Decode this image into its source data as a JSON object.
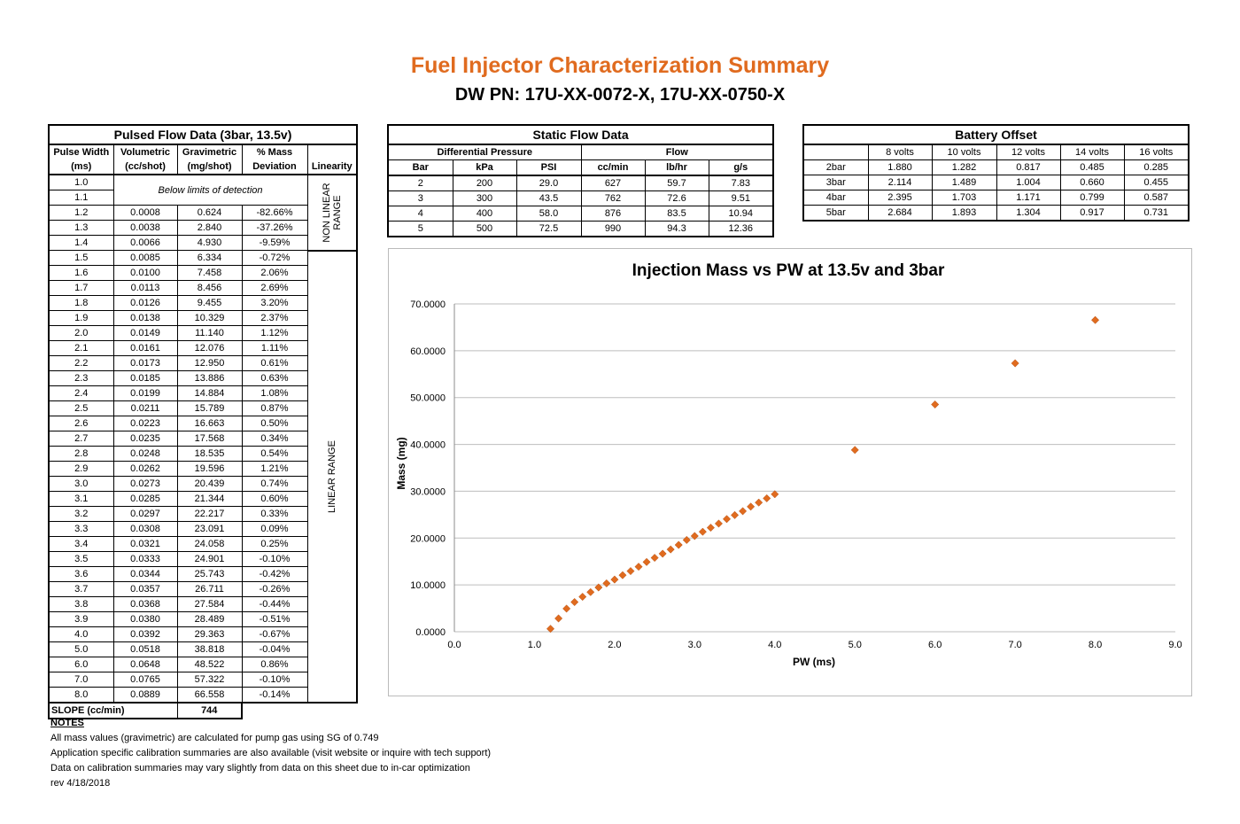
{
  "title": "Fuel Injector Characterization Summary",
  "subtitle": "DW PN: 17U-XX-0072-X, 17U-XX-0750-X",
  "pulsed": {
    "title": "Pulsed Flow Data (3bar, 13.5v)",
    "h_pw": [
      "Pulse Width",
      "(ms)"
    ],
    "h_vol": [
      "Volumetric",
      "(cc/shot)"
    ],
    "h_grav": [
      "Gravimetric",
      "(mg/shot)"
    ],
    "h_dev": [
      "% Mass",
      "Deviation"
    ],
    "h_lin": "Linearity",
    "below_limit": "Below limits of detection",
    "nonlinear_label": [
      "NON LINEAR",
      "RANGE"
    ],
    "linear_label": "LINEAR RANGE",
    "rows": [
      [
        "1.0",
        "",
        "",
        ""
      ],
      [
        "1.1",
        "",
        "",
        ""
      ],
      [
        "1.2",
        "0.0008",
        "0.624",
        "-82.66%"
      ],
      [
        "1.3",
        "0.0038",
        "2.840",
        "-37.26%"
      ],
      [
        "1.4",
        "0.0066",
        "4.930",
        "-9.59%"
      ],
      [
        "1.5",
        "0.0085",
        "6.334",
        "-0.72%"
      ],
      [
        "1.6",
        "0.0100",
        "7.458",
        "2.06%"
      ],
      [
        "1.7",
        "0.0113",
        "8.456",
        "2.69%"
      ],
      [
        "1.8",
        "0.0126",
        "9.455",
        "3.20%"
      ],
      [
        "1.9",
        "0.0138",
        "10.329",
        "2.37%"
      ],
      [
        "2.0",
        "0.0149",
        "11.140",
        "1.12%"
      ],
      [
        "2.1",
        "0.0161",
        "12.076",
        "1.11%"
      ],
      [
        "2.2",
        "0.0173",
        "12.950",
        "0.61%"
      ],
      [
        "2.3",
        "0.0185",
        "13.886",
        "0.63%"
      ],
      [
        "2.4",
        "0.0199",
        "14.884",
        "1.08%"
      ],
      [
        "2.5",
        "0.0211",
        "15.789",
        "0.87%"
      ],
      [
        "2.6",
        "0.0223",
        "16.663",
        "0.50%"
      ],
      [
        "2.7",
        "0.0235",
        "17.568",
        "0.34%"
      ],
      [
        "2.8",
        "0.0248",
        "18.535",
        "0.54%"
      ],
      [
        "2.9",
        "0.0262",
        "19.596",
        "1.21%"
      ],
      [
        "3.0",
        "0.0273",
        "20.439",
        "0.74%"
      ],
      [
        "3.1",
        "0.0285",
        "21.344",
        "0.60%"
      ],
      [
        "3.2",
        "0.0297",
        "22.217",
        "0.33%"
      ],
      [
        "3.3",
        "0.0308",
        "23.091",
        "0.09%"
      ],
      [
        "3.4",
        "0.0321",
        "24.058",
        "0.25%"
      ],
      [
        "3.5",
        "0.0333",
        "24.901",
        "-0.10%"
      ],
      [
        "3.6",
        "0.0344",
        "25.743",
        "-0.42%"
      ],
      [
        "3.7",
        "0.0357",
        "26.711",
        "-0.26%"
      ],
      [
        "3.8",
        "0.0368",
        "27.584",
        "-0.44%"
      ],
      [
        "3.9",
        "0.0380",
        "28.489",
        "-0.51%"
      ],
      [
        "4.0",
        "0.0392",
        "29.363",
        "-0.67%"
      ],
      [
        "5.0",
        "0.0518",
        "38.818",
        "-0.04%"
      ],
      [
        "6.0",
        "0.0648",
        "48.522",
        "0.86%"
      ],
      [
        "7.0",
        "0.0765",
        "57.322",
        "-0.10%"
      ],
      [
        "8.0",
        "0.0889",
        "66.558",
        "-0.14%"
      ]
    ],
    "slope_label": "SLOPE (cc/min)",
    "slope_value": "744"
  },
  "static": {
    "title": "Static Flow Data",
    "dp_label": "Differential Pressure",
    "flow_label": "Flow",
    "cols": [
      "Bar",
      "kPa",
      "PSI",
      "cc/min",
      "lb/hr",
      "g/s"
    ],
    "rows": [
      [
        "2",
        "200",
        "29.0",
        "627",
        "59.7",
        "7.83"
      ],
      [
        "3",
        "300",
        "43.5",
        "762",
        "72.6",
        "9.51"
      ],
      [
        "4",
        "400",
        "58.0",
        "876",
        "83.5",
        "10.94"
      ],
      [
        "5",
        "500",
        "72.5",
        "990",
        "94.3",
        "12.36"
      ]
    ]
  },
  "battery": {
    "title": "Battery Offset",
    "cols": [
      "8 volts",
      "10 volts",
      "12 volts",
      "14 volts",
      "16 volts"
    ],
    "rows": [
      [
        "2bar",
        "1.880",
        "1.282",
        "0.817",
        "0.485",
        "0.285"
      ],
      [
        "3bar",
        "2.114",
        "1.489",
        "1.004",
        "0.660",
        "0.455"
      ],
      [
        "4bar",
        "2.395",
        "1.703",
        "1.171",
        "0.799",
        "0.587"
      ],
      [
        "5bar",
        "2.684",
        "1.893",
        "1.304",
        "0.917",
        "0.731"
      ]
    ]
  },
  "chart_data": {
    "type": "scatter",
    "title": "Injection Mass vs PW at 13.5v and 3bar",
    "xlabel": "PW (ms)",
    "ylabel": "Mass (mg)",
    "xlim": [
      0,
      9
    ],
    "ylim": [
      0,
      70
    ],
    "xticks": [
      "0.0",
      "1.0",
      "2.0",
      "3.0",
      "4.0",
      "5.0",
      "6.0",
      "7.0",
      "8.0",
      "9.0"
    ],
    "yticks": [
      "0.0000",
      "10.0000",
      "20.0000",
      "30.0000",
      "40.0000",
      "50.0000",
      "60.0000",
      "70.0000"
    ],
    "grid": true,
    "marker_color": "#e06b1f",
    "x": [
      1.2,
      1.3,
      1.4,
      1.5,
      1.6,
      1.7,
      1.8,
      1.9,
      2.0,
      2.1,
      2.2,
      2.3,
      2.4,
      2.5,
      2.6,
      2.7,
      2.8,
      2.9,
      3.0,
      3.1,
      3.2,
      3.3,
      3.4,
      3.5,
      3.6,
      3.7,
      3.8,
      3.9,
      4.0,
      5.0,
      6.0,
      7.0,
      8.0
    ],
    "y": [
      0.624,
      2.84,
      4.93,
      6.334,
      7.458,
      8.456,
      9.455,
      10.329,
      11.14,
      12.076,
      12.95,
      13.886,
      14.884,
      15.789,
      16.663,
      17.568,
      18.535,
      19.596,
      20.439,
      21.344,
      22.217,
      23.091,
      24.058,
      24.901,
      25.743,
      26.711,
      27.584,
      28.489,
      29.363,
      38.818,
      48.522,
      57.322,
      66.558
    ]
  },
  "notes": {
    "head": "NOTES",
    "lines": [
      "All mass values (gravimetric) are calculated for pump gas using SG of 0.749",
      "Application specific calibration summaries are also available (visit website or inquire with tech support)",
      "Data on calibration summaries may vary slightly from data on this sheet due to in-car optimization",
      "rev 4/18/2018"
    ]
  }
}
